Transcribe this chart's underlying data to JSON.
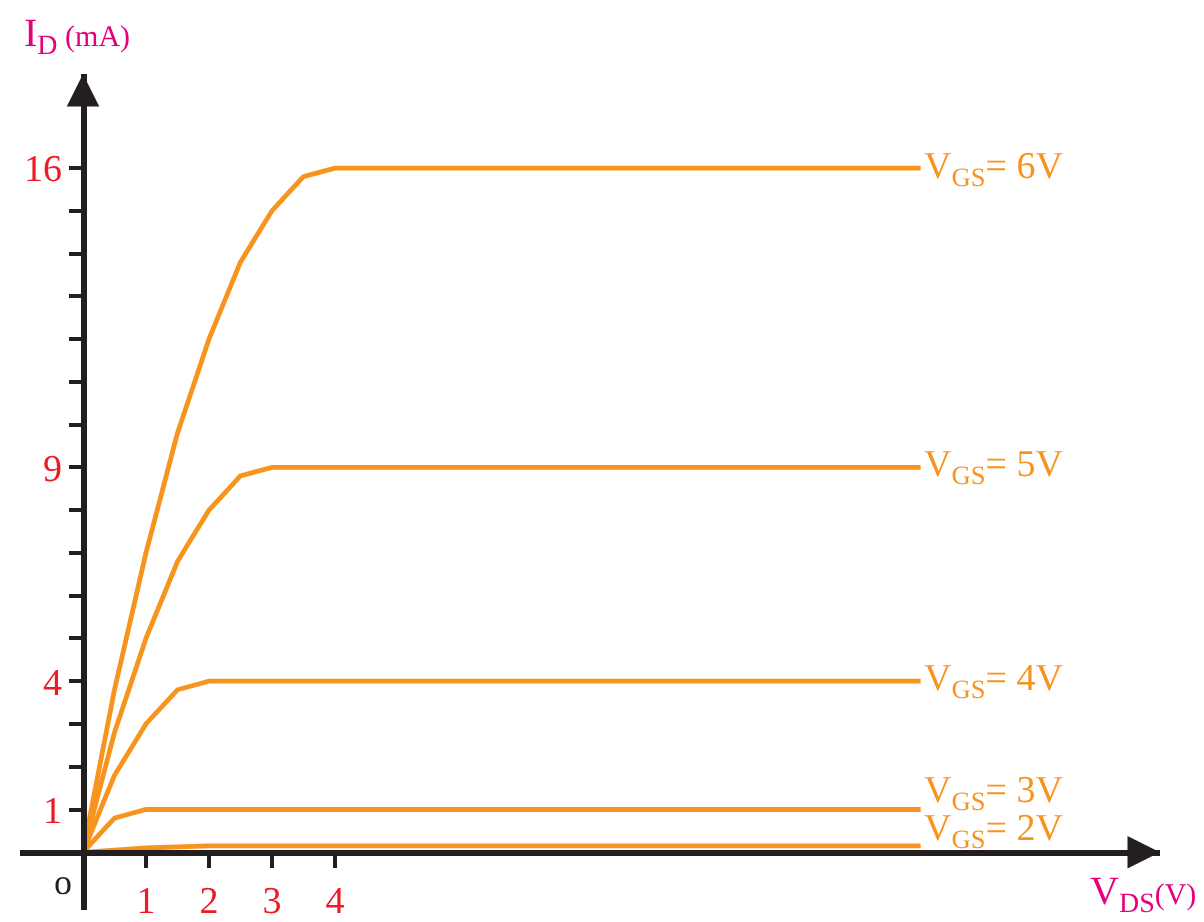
{
  "chart_data": {
    "type": "line",
    "xlabel": "V$_{DS}$(V)",
    "ylabel": "I$_{D}$ (mA)",
    "annotations": [
      "o"
    ],
    "xlim": [
      -1,
      17.1
    ],
    "ylim": [
      -1.35,
      18.2
    ],
    "xticks": [
      1,
      2,
      3,
      4
    ],
    "yticks": [
      1,
      {
        "value": 2,
        "label": null
      },
      {
        "value": 3,
        "label": null
      },
      4,
      {
        "value": 5,
        "label": null
      },
      {
        "value": 6,
        "label": null
      },
      {
        "value": 7,
        "label": null
      },
      {
        "value": 8,
        "label": null
      },
      9,
      {
        "value": 10,
        "label": null
      },
      {
        "value": 11,
        "label": null
      },
      {
        "value": 12,
        "label": null
      },
      {
        "value": 13,
        "label": null
      },
      {
        "value": 14,
        "label": null
      },
      {
        "value": 15,
        "label": null
      },
      16
    ],
    "grid": false,
    "legend": false,
    "marker": "none",
    "line_style": "solid",
    "series": [
      {
        "name": "V$_{GS}$= 6V",
        "color": "#f7941d",
        "x": [
          0,
          0.25,
          0.5,
          0.75,
          1,
          1.25,
          1.5,
          1.75,
          2,
          2.25,
          2.5,
          2.75,
          3,
          3.25,
          3.5,
          3.75,
          4,
          13.3
        ],
        "values": [
          0,
          1.9,
          3.8,
          5.4,
          7,
          8.4,
          9.8,
          10.9,
          12,
          12.9,
          13.8,
          14.4,
          15,
          15.4,
          15.8,
          15.9,
          16,
          16
        ]
      },
      {
        "name": "V$_{GS}$= 5V",
        "color": "#f7941d",
        "x": [
          0,
          0.25,
          0.5,
          0.75,
          1,
          1.25,
          1.5,
          1.75,
          2,
          2.25,
          2.5,
          2.75,
          3,
          13.3
        ],
        "values": [
          0,
          1.4,
          2.8,
          3.9,
          5,
          5.9,
          6.8,
          7.4,
          8,
          8.4,
          8.8,
          8.9,
          9,
          9
        ]
      },
      {
        "name": "V$_{GS}$= 4V",
        "color": "#f7941d",
        "x": [
          0,
          0.25,
          0.5,
          0.75,
          1,
          1.25,
          1.5,
          1.75,
          2,
          13.3
        ],
        "values": [
          0,
          0.9,
          1.8,
          2.4,
          3,
          3.4,
          3.8,
          3.9,
          4,
          4
        ]
      },
      {
        "name": "V$_{GS}$= 3V",
        "color": "#f7941d",
        "x": [
          0,
          0.25,
          0.5,
          0.75,
          1,
          13.3
        ],
        "values": [
          0,
          0.4,
          0.8,
          0.9,
          1,
          1
        ]
      },
      {
        "name": "V$_{GS}$= 2V",
        "color": "#f7941d",
        "x": [
          0,
          1,
          2,
          13.3
        ],
        "values": [
          0,
          0.1,
          0.15,
          0.15
        ]
      }
    ]
  }
}
